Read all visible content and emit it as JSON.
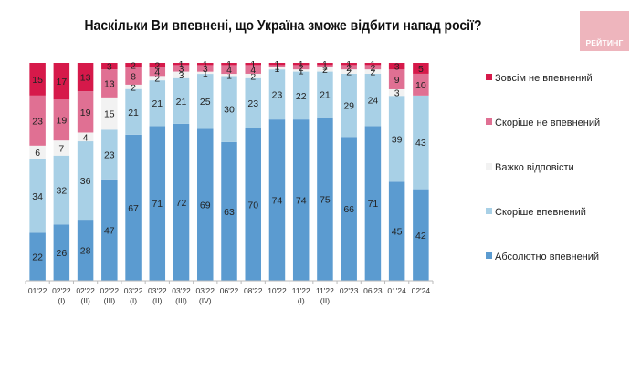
{
  "title": "Наскільки Ви впевнені, що Україна зможе відбити напад росії?",
  "logo_text": "РЕЙТИНГ",
  "chart_data": {
    "type": "bar",
    "stacked": true,
    "title": "Наскільки Ви впевнені, що Україна зможе відбити напад росії?",
    "xlabel": "",
    "ylabel": "",
    "ylim": [
      0,
      100
    ],
    "grid": false,
    "legend_position": "right",
    "categories": [
      [
        "01'22",
        ""
      ],
      [
        "02'22",
        "(I)"
      ],
      [
        "02'22",
        "(II)"
      ],
      [
        "02'22",
        "(III)"
      ],
      [
        "03'22",
        "(I)"
      ],
      [
        "03'22",
        "(II)"
      ],
      [
        "03'22",
        "(III)"
      ],
      [
        "03'22",
        "(IV)"
      ],
      [
        "06'22",
        ""
      ],
      [
        "08'22",
        ""
      ],
      [
        "10'22",
        ""
      ],
      [
        "11'22",
        "(I)"
      ],
      [
        "11'22",
        "(II)"
      ],
      [
        "02'23",
        ""
      ],
      [
        "06'23",
        ""
      ],
      [
        "01'24",
        ""
      ],
      [
        "02'24",
        ""
      ]
    ],
    "series": [
      {
        "name": "Абсолютно впевнений",
        "color": "#5b9bd0",
        "values": [
          22,
          26,
          28,
          47,
          67,
          71,
          72,
          69,
          63,
          70,
          74,
          74,
          75,
          66,
          71,
          45,
          42
        ]
      },
      {
        "name": "Скоріше впевнений",
        "color": "#a8d0e6",
        "values": [
          34,
          32,
          36,
          23,
          21,
          21,
          21,
          25,
          30,
          23,
          23,
          22,
          21,
          29,
          24,
          39,
          43
        ]
      },
      {
        "name": "Важко відповісти",
        "color": "#f2f2f2",
        "values": [
          6,
          7,
          4,
          15,
          2,
          2,
          3,
          1,
          1,
          2,
          1,
          1,
          2,
          2,
          2,
          3,
          0
        ]
      },
      {
        "name": "Скоріше не впевнений",
        "color": "#e07093",
        "values": [
          23,
          19,
          19,
          13,
          8,
          4,
          3,
          3,
          4,
          4,
          1,
          2,
          1,
          2,
          2,
          9,
          10
        ]
      },
      {
        "name": "Зовсім не впевнений",
        "color": "#d6194a",
        "values": [
          15,
          17,
          13,
          3,
          2,
          2,
          1,
          1,
          1,
          1,
          1,
          1,
          1,
          1,
          1,
          3,
          5
        ]
      }
    ],
    "legend_order": [
      "Зовсім не впевнений",
      "Скоріше не впевнений",
      "Важко відповісти",
      "Скоріше впевнений",
      "Абсолютно впевнений"
    ]
  }
}
